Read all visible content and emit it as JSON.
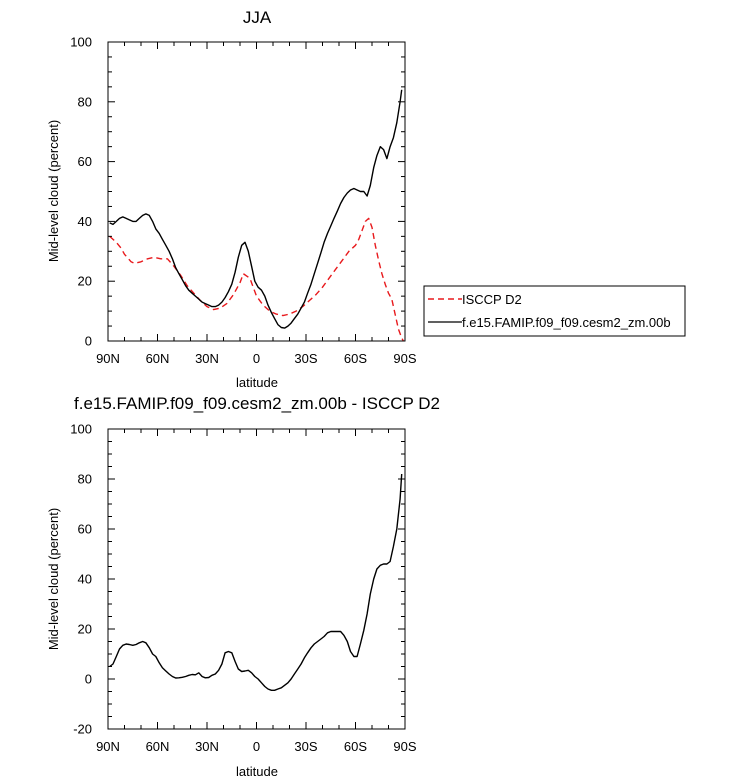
{
  "chart_data": [
    {
      "type": "line",
      "title": "JJA",
      "xlabel": "latitude",
      "ylabel": "Mid-level cloud (percent)",
      "xlim": [
        -90,
        90
      ],
      "ylim": [
        0,
        100
      ],
      "xticks": [
        -90,
        -60,
        -30,
        0,
        30,
        60,
        90
      ],
      "xtick_labels": [
        "90N",
        "60N",
        "30N",
        "0",
        "30S",
        "60S",
        "90S"
      ],
      "yticks": [
        0,
        20,
        40,
        60,
        80,
        100
      ],
      "ytick_labels": [
        "0",
        "20",
        "40",
        "60",
        "80",
        "100"
      ],
      "legend": "right",
      "series": [
        {
          "name": "ISCCP D2",
          "color": "#e8191c",
          "dash": "dashed",
          "x": [
            -89,
            -85,
            -82,
            -80,
            -76,
            -74,
            -70,
            -66,
            -62,
            -58,
            -54,
            -50,
            -46,
            -42,
            -38,
            -34,
            -30,
            -26,
            -22,
            -18,
            -14,
            -10,
            -8,
            -4,
            0,
            4,
            8,
            12,
            16,
            20,
            24,
            28,
            32,
            36,
            40,
            44,
            48,
            52,
            56,
            60,
            62,
            64,
            66,
            68,
            70,
            72,
            74,
            76,
            78,
            80,
            82,
            84,
            86,
            88,
            89
          ],
          "y": [
            35,
            33,
            31,
            29,
            26.5,
            26,
            26.5,
            27.5,
            28,
            27.5,
            27.5,
            25,
            22,
            18.5,
            16,
            13.5,
            11.5,
            10.5,
            11,
            12.5,
            15.5,
            19.5,
            22.5,
            21,
            15,
            12,
            10,
            9,
            8.5,
            9,
            10,
            11.5,
            13.5,
            15.5,
            18,
            21,
            24,
            27,
            30,
            32,
            34,
            37,
            40,
            41,
            38,
            32,
            27,
            22.5,
            19,
            16,
            14,
            9,
            4,
            1,
            0
          ]
        },
        {
          "name": "f.e15.FAMIP.f09_f09.cesm2_zm.00b",
          "color": "#000000",
          "dash": "solid",
          "x": [
            -89,
            -87,
            -85,
            -83,
            -81,
            -79,
            -77,
            -75,
            -73,
            -71,
            -69,
            -67,
            -65,
            -63,
            -61,
            -59,
            -57,
            -55,
            -53,
            -51,
            -49,
            -47,
            -45,
            -43,
            -41,
            -39,
            -37,
            -35,
            -33,
            -31,
            -29,
            -27,
            -25,
            -23,
            -21,
            -19,
            -17,
            -15,
            -13,
            -11,
            -9,
            -7,
            -5,
            -3,
            -1,
            1,
            3,
            5,
            7,
            9,
            11,
            13,
            15,
            17,
            19,
            21,
            23,
            25,
            27,
            29,
            31,
            33,
            35,
            37,
            39,
            41,
            43,
            45,
            47,
            49,
            51,
            53,
            55,
            57,
            59,
            61,
            63,
            65,
            67,
            69,
            71,
            73,
            75,
            77,
            79,
            81,
            83,
            85,
            87,
            88
          ],
          "y": [
            39.5,
            39,
            40,
            41,
            41.5,
            41,
            40.5,
            40,
            40,
            41,
            42,
            42.5,
            42,
            40,
            37.5,
            36,
            34,
            32,
            30,
            27.5,
            24.5,
            22.5,
            20.5,
            18.5,
            17,
            16,
            15,
            14,
            13,
            12.5,
            12,
            11.5,
            11.5,
            12,
            13,
            14.5,
            16.5,
            19,
            23,
            28,
            32,
            33,
            30,
            25,
            20,
            18,
            17,
            15,
            12,
            9.5,
            7.5,
            5.5,
            4.5,
            4.3,
            5,
            6,
            7.5,
            9,
            11,
            13,
            16,
            19,
            22.5,
            26,
            29.5,
            33,
            36,
            38.5,
            41,
            43.5,
            46,
            48,
            49.5,
            50.5,
            51,
            50.5,
            50,
            50,
            48.5,
            52,
            58,
            62,
            65,
            64,
            61,
            65,
            68,
            73,
            80,
            84
          ]
        }
      ]
    },
    {
      "type": "line",
      "title": "f.e15.FAMIP.f09_f09.cesm2_zm.00b - ISCCP D2",
      "xlabel": "latitude",
      "ylabel": "Mid-level cloud (percent)",
      "xlim": [
        -90,
        90
      ],
      "ylim": [
        -20,
        100
      ],
      "xticks": [
        -90,
        -60,
        -30,
        0,
        30,
        60,
        90
      ],
      "xtick_labels": [
        "90N",
        "60N",
        "30N",
        "0",
        "30S",
        "60S",
        "90S"
      ],
      "yticks": [
        -20,
        0,
        20,
        40,
        60,
        80,
        100
      ],
      "ytick_labels": [
        "-20",
        "0",
        "20",
        "40",
        "60",
        "80",
        "100"
      ],
      "series": [
        {
          "color": "#000000",
          "dash": "solid",
          "x": [
            -89,
            -87,
            -85,
            -83,
            -81,
            -79,
            -77,
            -75,
            -73,
            -71,
            -69,
            -67,
            -65,
            -63,
            -61,
            -59,
            -57,
            -55,
            -53,
            -51,
            -49,
            -47,
            -45,
            -43,
            -41,
            -39,
            -37,
            -35,
            -33,
            -31,
            -29,
            -27,
            -25,
            -23,
            -21,
            -19,
            -17,
            -15,
            -13,
            -11,
            -9,
            -7,
            -5,
            -3,
            -1,
            1,
            3,
            5,
            7,
            9,
            11,
            13,
            15,
            17,
            19,
            21,
            23,
            25,
            27,
            29,
            31,
            33,
            35,
            37,
            39,
            41,
            43,
            45,
            47,
            49,
            51,
            53,
            55,
            57,
            59,
            61,
            63,
            65,
            67,
            69,
            71,
            73,
            75,
            77,
            79,
            81,
            83,
            85,
            87,
            88
          ],
          "y": [
            5,
            6,
            9,
            12,
            13.5,
            14,
            13.8,
            13.5,
            13.8,
            14.5,
            15,
            14.5,
            12.5,
            10,
            9,
            6.5,
            4.5,
            3.2,
            2,
            1,
            0.4,
            0.5,
            0.7,
            1,
            1.5,
            1.8,
            1.7,
            2.5,
            1,
            0.5,
            0.6,
            1.5,
            2,
            3.5,
            6,
            10.5,
            11,
            10.5,
            7,
            4,
            3,
            3.2,
            3.5,
            2.5,
            1,
            0,
            -1.5,
            -3,
            -4,
            -4.5,
            -4.5,
            -4,
            -3.5,
            -2.5,
            -1.5,
            0,
            2,
            4,
            6,
            8.5,
            10.5,
            12.5,
            14,
            15,
            16,
            17,
            18.5,
            19,
            19,
            19,
            19,
            17.5,
            15,
            11,
            9,
            9,
            14,
            19.5,
            26,
            34,
            40,
            44,
            45.5,
            46,
            46,
            47,
            53,
            60,
            72,
            82
          ]
        }
      ]
    }
  ]
}
